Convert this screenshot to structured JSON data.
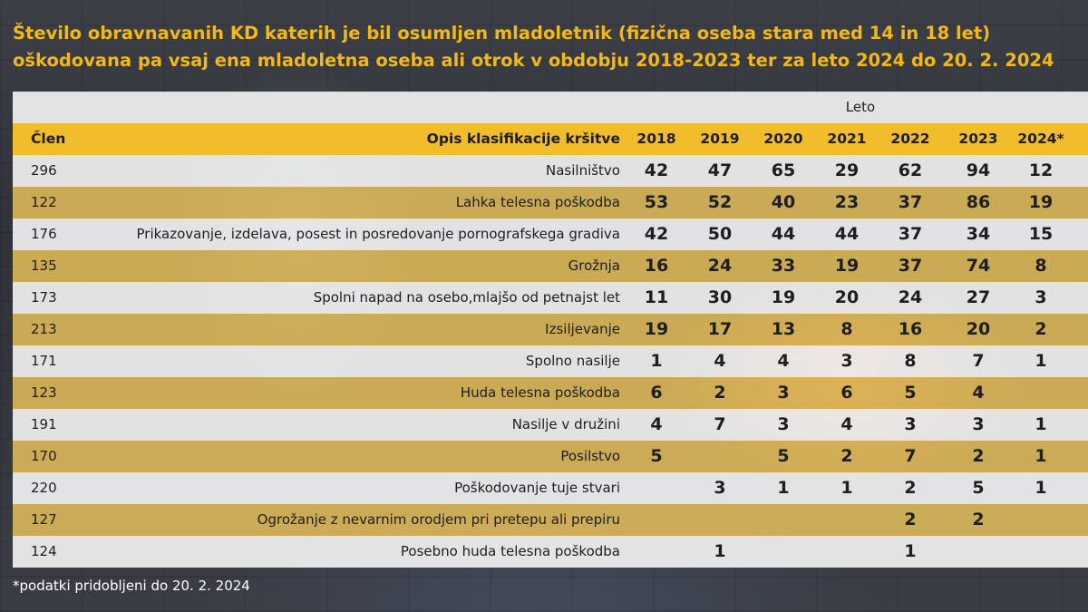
{
  "title_line1": "Število obravnavanih KD katerih je bil osumljen mladoletnik (fizična oseba stara med 14 in 18 let)",
  "title_line2": "oškodovana pa vsaj ena mladoletna oseba ali otrok v obdobju 2018-2023 ter za leto 2024 do 20. 2. 2024",
  "leto_label": "Leto",
  "col_clen": "Člen",
  "col_opis": "Opis klasifikacije kršitve",
  "footnote": "*podatki pridobljeni do 20. 2. 2024",
  "colors": {
    "title": "#f1b81c",
    "header": "#f1bd2c",
    "row_gold": "#f1c85c",
    "row_light": "#ffffff"
  },
  "chart_data": {
    "type": "table",
    "columns": [
      "2018",
      "2019",
      "2020",
      "2021",
      "2022",
      "2023",
      "2024*"
    ],
    "rows": [
      {
        "clen": "296",
        "opis": "Nasilništvo",
        "values": [
          "42",
          "47",
          "65",
          "29",
          "62",
          "94",
          "12"
        ]
      },
      {
        "clen": "122",
        "opis": "Lahka telesna poškodba",
        "values": [
          "53",
          "52",
          "40",
          "23",
          "37",
          "86",
          "19"
        ]
      },
      {
        "clen": "176",
        "opis": "Prikazovanje, izdelava, posest in posredovanje pornografskega gradiva",
        "values": [
          "42",
          "50",
          "44",
          "44",
          "37",
          "34",
          "15"
        ]
      },
      {
        "clen": "135",
        "opis": "Grožnja",
        "values": [
          "16",
          "24",
          "33",
          "19",
          "37",
          "74",
          "8"
        ]
      },
      {
        "clen": "173",
        "opis": "Spolni napad na osebo,mlajšo od petnajst let",
        "values": [
          "11",
          "30",
          "19",
          "20",
          "24",
          "27",
          "3"
        ]
      },
      {
        "clen": "213",
        "opis": "Izsiljevanje",
        "values": [
          "19",
          "17",
          "13",
          "8",
          "16",
          "20",
          "2"
        ]
      },
      {
        "clen": "171",
        "opis": "Spolno nasilje",
        "values": [
          "1",
          "4",
          "4",
          "3",
          "8",
          "7",
          "1"
        ]
      },
      {
        "clen": "123",
        "opis": "Huda telesna poškodba",
        "values": [
          "6",
          "2",
          "3",
          "6",
          "5",
          "4",
          ""
        ]
      },
      {
        "clen": "191",
        "opis": "Nasilje v družini",
        "values": [
          "4",
          "7",
          "3",
          "4",
          "3",
          "3",
          "1"
        ]
      },
      {
        "clen": "170",
        "opis": "Posilstvo",
        "values": [
          "5",
          "",
          "5",
          "2",
          "7",
          "2",
          "1"
        ]
      },
      {
        "clen": "220",
        "opis": "Poškodovanje tuje stvari",
        "values": [
          "",
          "3",
          "1",
          "1",
          "2",
          "5",
          "1"
        ]
      },
      {
        "clen": "127",
        "opis": "Ogrožanje z nevarnim orodjem pri pretepu ali prepiru",
        "values": [
          "",
          "",
          "",
          "",
          "2",
          "2",
          ""
        ]
      },
      {
        "clen": "124",
        "opis": "Posebno huda telesna poškodba",
        "values": [
          "",
          "1",
          "",
          "",
          "1",
          "",
          ""
        ]
      }
    ]
  }
}
